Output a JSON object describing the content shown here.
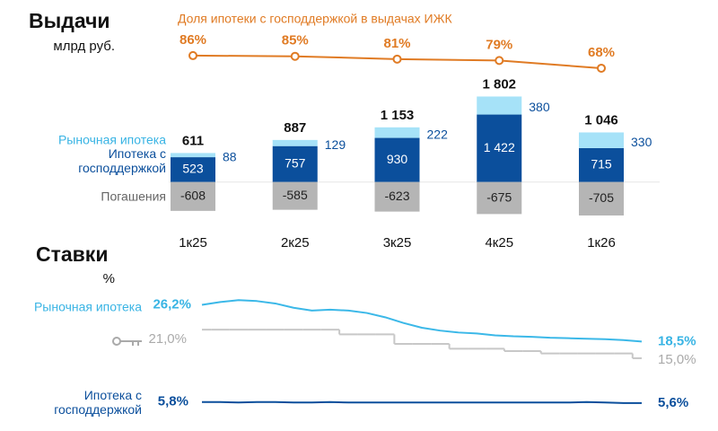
{
  "chart_data": [
    {
      "type": "bar",
      "stacked": true,
      "title": "Выдачи",
      "subtitle": "млрд руб.",
      "categories": [
        "1к25",
        "2к25",
        "3к25",
        "4к25",
        "1к26"
      ],
      "series": [
        {
          "name": "Ипотека с господдержкой",
          "color": "#0b4f9c",
          "values": [
            523,
            757,
            930,
            1422,
            715
          ],
          "value_labels": [
            "523",
            "757",
            "930",
            "1 422",
            "715"
          ]
        },
        {
          "name": "Рыночная ипотека",
          "color": "#a6e2f8",
          "values": [
            88,
            129,
            222,
            380,
            330
          ]
        },
        {
          "name": "Погашения",
          "color": "#b5b5b5",
          "values": [
            -608,
            -585,
            -623,
            -675,
            -705
          ]
        },
        {
          "name": "Доля ипотеки с господдержкой в выдачах ИЖК",
          "type": "line",
          "axis": "y2",
          "color": "#e07b24",
          "values": [
            86,
            85,
            81,
            79,
            68
          ],
          "value_labels": [
            "86%",
            "85%",
            "81%",
            "79%",
            "68%"
          ]
        }
      ],
      "totals": [
        611,
        887,
        1153,
        1802,
        1046
      ],
      "total_labels": [
        "611",
        "887",
        "1 153",
        "1 802",
        "1 046"
      ],
      "ylim": [
        -800,
        2000
      ],
      "y2lim": [
        0,
        100
      ]
    },
    {
      "type": "line",
      "title": "Ставки",
      "subtitle": "%",
      "categories": [
        null,
        null,
        null,
        null,
        null,
        null,
        null,
        null,
        null,
        null,
        null,
        null,
        null,
        null,
        null,
        null,
        null,
        null,
        null,
        null,
        null,
        null,
        null,
        null,
        null
      ],
      "ylim": [
        5,
        28
      ],
      "series": [
        {
          "name": "Рыночная ипотека",
          "color": "#3bb8e8",
          "values": [
            26.2,
            26.8,
            27.2,
            27.0,
            26.5,
            25.6,
            25.0,
            25.2,
            25.0,
            24.5,
            23.6,
            22.4,
            21.4,
            20.8,
            20.4,
            20.2,
            19.8,
            19.6,
            19.5,
            19.3,
            19.2,
            19.1,
            19.0,
            18.8,
            18.5
          ],
          "value_labels": [
            "26,2%",
            null,
            null,
            null,
            null,
            null,
            null,
            null,
            null,
            null,
            null,
            null,
            null,
            null,
            null,
            null,
            null,
            null,
            null,
            null,
            null,
            null,
            null,
            null,
            "18,5%"
          ]
        },
        {
          "color": "#c8c8c8",
          "step": true,
          "values": [
            21.0,
            21.0,
            21.0,
            21.0,
            21.0,
            21.0,
            21.0,
            21.0,
            20.0,
            20.0,
            20.0,
            18.0,
            18.0,
            18.0,
            17.0,
            17.0,
            17.0,
            16.5,
            16.5,
            16.0,
            16.0,
            16.0,
            16.0,
            16.0,
            15.0
          ],
          "value_labels": [
            "21,0%",
            null,
            null,
            null,
            null,
            null,
            null,
            null,
            null,
            null,
            null,
            null,
            null,
            null,
            null,
            null,
            null,
            null,
            null,
            null,
            null,
            null,
            null,
            null,
            "15,0%"
          ]
        },
        {
          "name": "Ипотека с господдержкой",
          "color": "#0b4f9c",
          "values": [
            5.8,
            5.8,
            5.7,
            5.8,
            5.8,
            5.7,
            5.7,
            5.8,
            5.7,
            5.7,
            5.7,
            5.7,
            5.7,
            5.7,
            5.7,
            5.7,
            5.7,
            5.7,
            5.7,
            5.7,
            5.7,
            5.8,
            5.7,
            5.6,
            5.6
          ],
          "value_labels": [
            "5,8%",
            null,
            null,
            null,
            null,
            null,
            null,
            null,
            null,
            null,
            null,
            null,
            null,
            null,
            null,
            null,
            null,
            null,
            null,
            null,
            null,
            null,
            null,
            null,
            "5,6%"
          ]
        }
      ]
    }
  ]
}
